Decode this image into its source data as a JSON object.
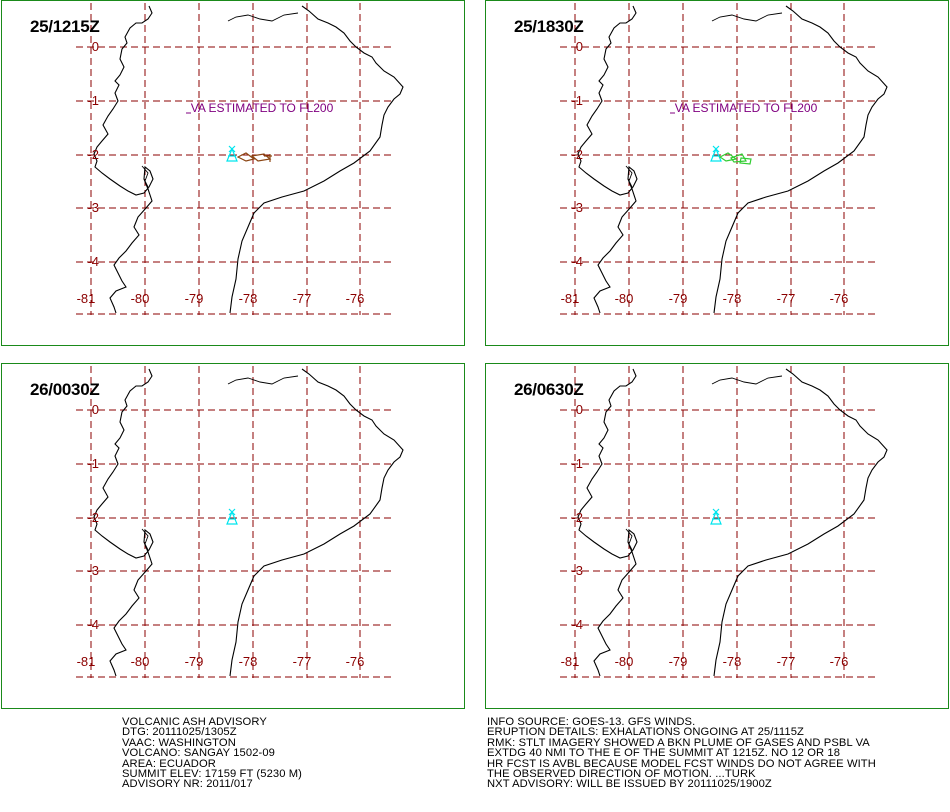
{
  "panels": [
    {
      "title": "25/1215Z",
      "annotation": "VA ESTIMATED TO FL200",
      "plume": "brown"
    },
    {
      "title": "25/1830Z",
      "annotation": "VA ESTIMATED TO FL200",
      "plume": "green"
    },
    {
      "title": "26/0030Z",
      "annotation": "",
      "plume": "none"
    },
    {
      "title": "26/0630Z",
      "annotation": "",
      "plume": "none"
    }
  ],
  "lat_labels": [
    "0",
    "-1",
    "-2",
    "-3",
    "-4"
  ],
  "lon_labels": [
    "-81",
    "-80",
    "-79",
    "-78",
    "-77",
    "-76"
  ],
  "colors": {
    "border": "#1a8a1a",
    "grid": "#8b0000",
    "annotation": "#800080",
    "volcano": "#00e5ee",
    "plume_brown": "#8b4513",
    "plume_green": "#32cd32"
  },
  "volcano_icon": "volcano-triangle-icon",
  "advisory_left": [
    "VOLCANIC ASH ADVISORY",
    "DTG: 20111025/1305Z",
    "VAAC: WASHINGTON",
    "VOLCANO: SANGAY 1502-09",
    "AREA: ECUADOR",
    "SUMMIT ELEV: 17159 FT (5230 M)",
    "ADVISORY NR: 2011/017"
  ],
  "advisory_right": [
    "INFO SOURCE: GOES-13. GFS WINDS.",
    "ERUPTION DETAILS: EXHALATIONS ONGOING AT 25/1115Z",
    "RMK: STLT IMAGERY SHOWED A BKN PLUME OF GASES AND PSBL VA",
    "EXTDG 40 NMI TO THE E OF THE SUMMIT AT 1215Z. NO 12 OR 18",
    "HR FCST IS AVBL BECAUSE MODEL FCST WINDS DO NOT AGREE WITH",
    "THE OBSERVED DIRECTION OF MOTION. ...TURK",
    "NXT ADVISORY: WILL BE ISSUED BY 20111025/1900Z"
  ]
}
